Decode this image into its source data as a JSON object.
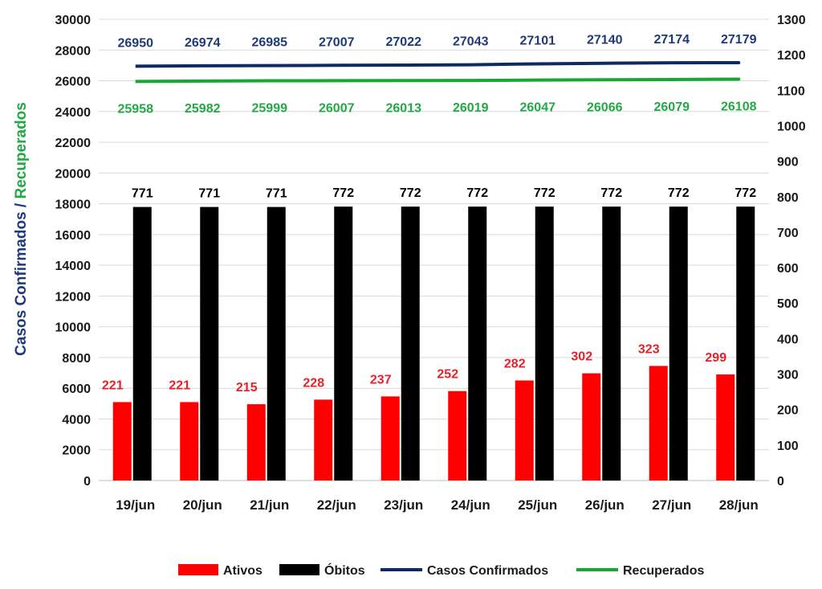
{
  "chart_data": {
    "type": "bar",
    "categories": [
      "19/jun",
      "20/jun",
      "21/jun",
      "22/jun",
      "23/jun",
      "24/jun",
      "25/jun",
      "26/jun",
      "27/jun",
      "28/jun"
    ],
    "ylim_left": [
      0,
      30000
    ],
    "yticks_left": [
      "0",
      "2000",
      "4000",
      "6000",
      "8000",
      "10000",
      "12000",
      "14000",
      "16000",
      "18000",
      "20000",
      "22000",
      "24000",
      "26000",
      "28000",
      "30000"
    ],
    "ylim_right": [
      0,
      1300
    ],
    "yticks_right": [
      "0",
      "100",
      "200",
      "300",
      "400",
      "500",
      "600",
      "700",
      "800",
      "900",
      "1000",
      "1100",
      "1200",
      "1300"
    ],
    "ylabel_part1": "Casos Confirmados",
    "ylabel_sep": " / ",
    "ylabel_part2": "Recuperados",
    "grid": true,
    "legend_position": "bottom",
    "series": [
      {
        "name": "Ativos",
        "kind": "bar",
        "axis": "right",
        "color": "#ff0000",
        "label_color": "#e8202a",
        "values": [
          221,
          221,
          215,
          228,
          237,
          252,
          282,
          302,
          323,
          299
        ]
      },
      {
        "name": "Óbitos",
        "kind": "bar",
        "axis": "right",
        "color": "#000000",
        "label_color": "#000000",
        "values": [
          771,
          771,
          771,
          772,
          772,
          772,
          772,
          772,
          772,
          772
        ]
      },
      {
        "name": "Casos Confirmados",
        "kind": "line",
        "axis": "left",
        "color": "#0e2a66",
        "label_color": "#1f3a7a",
        "values": [
          26950,
          26974,
          26985,
          27007,
          27022,
          27043,
          27101,
          27140,
          27174,
          27179
        ]
      },
      {
        "name": "Recuperados",
        "kind": "line",
        "axis": "left",
        "color": "#15a832",
        "label_color": "#22a845",
        "values": [
          25958,
          25982,
          25999,
          26007,
          26013,
          26019,
          26047,
          26066,
          26079,
          26108
        ]
      }
    ]
  }
}
